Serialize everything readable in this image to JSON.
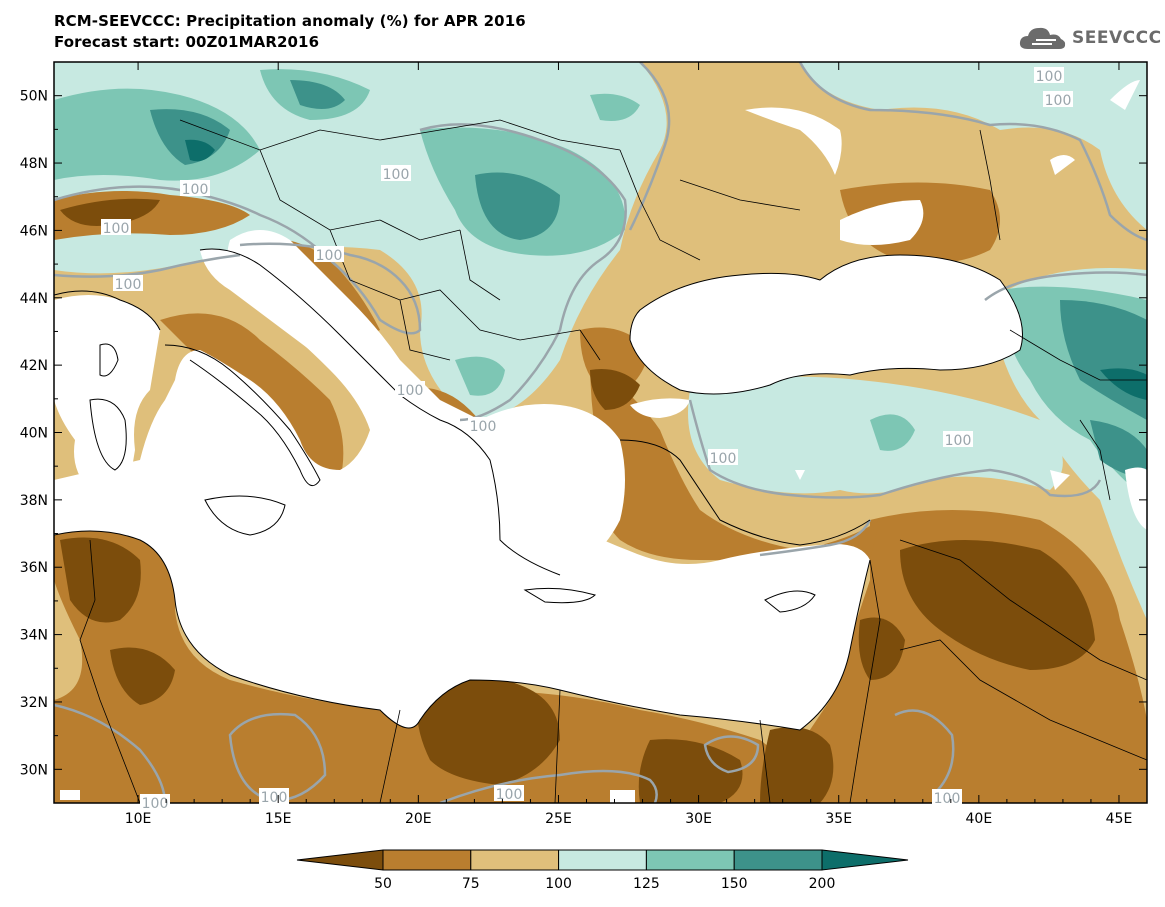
{
  "header": {
    "title": "RCM-SEEVCCC: Precipitation anomaly (%) for APR 2016",
    "subtitle": "Forecast start: 00Z01MAR2016"
  },
  "logo": {
    "text": "SEEVCCC",
    "icon": "cloud-icon"
  },
  "map": {
    "lon_range": [
      7,
      46
    ],
    "lat_range": [
      29,
      51
    ],
    "x_ticks": [
      "10E",
      "15E",
      "20E",
      "25E",
      "30E",
      "35E",
      "40E",
      "45E"
    ],
    "y_ticks": [
      "50N",
      "48N",
      "46N",
      "44N",
      "42N",
      "40N",
      "38N",
      "36N",
      "34N",
      "32N",
      "30N"
    ],
    "contour_labels": [
      "100",
      "100",
      "100",
      "100",
      "100",
      "100",
      "100",
      "100",
      "100",
      "100",
      "100",
      "100",
      "100",
      "100",
      "100"
    ]
  },
  "colorbar": {
    "labels": [
      "50",
      "75",
      "100",
      "125",
      "150",
      "200"
    ],
    "colors": [
      "#7c4d0c",
      "#b97e2f",
      "#dfbf7b",
      "#c7e9e1",
      "#7dc6b4",
      "#3d928a",
      "#0d6e6a"
    ]
  },
  "colors": {
    "ocean": "#ffffff",
    "dry_strong": "#7c4d0c",
    "dry": "#b97e2f",
    "dry_light": "#dfbf7b",
    "wet_light": "#c7e9e1",
    "wet": "#7dc6b4",
    "wet_strong": "#3d928a",
    "contour": "#9aa5ab"
  }
}
